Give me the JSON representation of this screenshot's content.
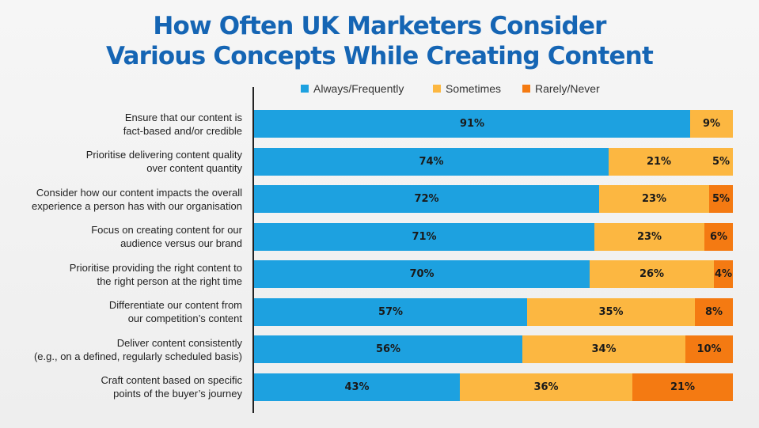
{
  "chart_data": {
    "type": "bar",
    "orientation": "horizontal",
    "stacked": true,
    "title_lines": [
      "How Often UK Marketers Consider",
      "Various Concepts While Creating Content"
    ],
    "legend_position": "top",
    "categories": [
      [
        "Ensure that our content is",
        "fact-based and/or credible"
      ],
      [
        "Prioritise delivering content quality",
        "over content quantity"
      ],
      [
        "Consider how our content impacts the overall",
        "experience a person has with our organisation"
      ],
      [
        "Focus on creating content for our",
        "audience versus our brand"
      ],
      [
        "Prioritise providing the right content to",
        "the right person at the right time"
      ],
      [
        "Differentiate our content from",
        "our competition’s content"
      ],
      [
        "Deliver content consistently",
        "(e.g., on a defined, regularly scheduled basis)"
      ],
      [
        "Craft content based on specific",
        "points of the buyer’s journey"
      ]
    ],
    "series": [
      {
        "name": "Always/Frequently",
        "color": "#1da1e0",
        "values": [
          91,
          74,
          72,
          71,
          70,
          57,
          56,
          43
        ]
      },
      {
        "name": "Sometimes",
        "color": "#fcb741",
        "values": [
          null,
          21,
          23,
          23,
          26,
          35,
          34,
          36
        ]
      },
      {
        "name": "Rarely/Never",
        "color": "#f47a12",
        "values": [
          9,
          5,
          5,
          6,
          4,
          8,
          10,
          21
        ]
      }
    ],
    "series_label_colors": [
      "#fcb741",
      "#fcb741",
      "#f47a12",
      "#f47a12",
      "#f47a12",
      "#f47a12",
      "#f47a12",
      "#f47a12"
    ],
    "value_suffix": "%",
    "xlim": [
      0,
      100
    ],
    "grid": false
  }
}
